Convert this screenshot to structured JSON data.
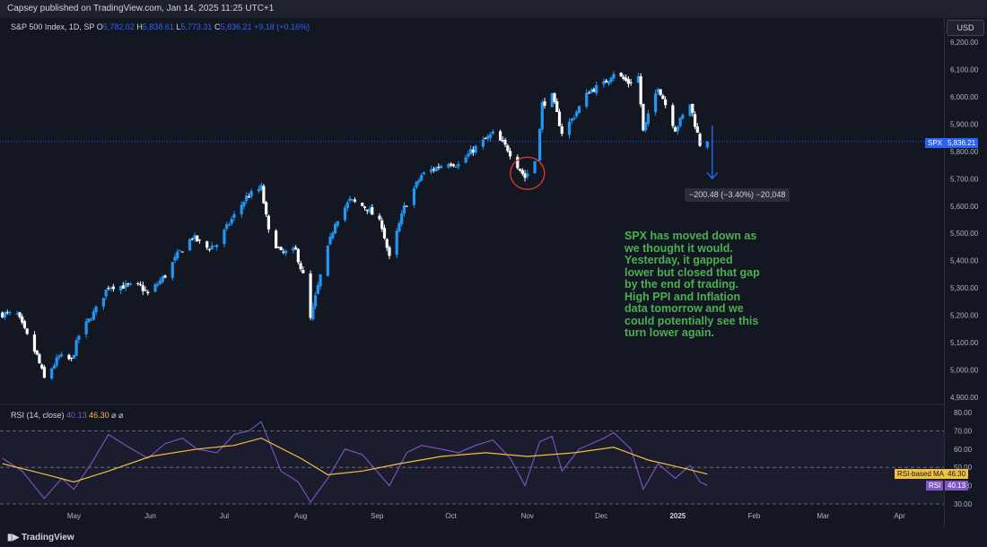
{
  "header": {
    "published": "Capsey published on TradingView.com, Jan 14, 2025 11:25 UTC+1"
  },
  "currency_button": "USD",
  "legend": {
    "symbol": "S&P 500 Index, 1D, SP",
    "o_label": "O",
    "o_value": "5,782.02",
    "h_label": "H",
    "h_value": "5,838.61",
    "l_label": "L",
    "l_value": "5,773.31",
    "c_label": "C",
    "c_value": "5,836.21",
    "change": "+9.18 (+0.16%)"
  },
  "price_tag": {
    "symbol": "SPX",
    "value": "5,836.21"
  },
  "measure_label": "−200.48 (−3.40%) −20,048",
  "annotation": "SPX has moved down as\nwe thought it would.\nYesterday, it gapped\nlower but closed that gap\nby the end of trading.\nHigh PPI and Inflation\ndata tomorrow and we\ncould potentially see this\nturn lower again.",
  "rsi_legend": {
    "label": "RSI (14, close)",
    "rsi_value": "40.13",
    "ma_value": "46.30",
    "icons": "⌀  ⌀"
  },
  "rsi_tags": {
    "ma_label": "RSI-based MA",
    "ma_value": "46.30",
    "rsi_label": "RSI",
    "rsi_value": "40.13"
  },
  "footer": {
    "brand": "TradingView"
  },
  "colors": {
    "up": "#2196f3",
    "down": "#ffffff",
    "rsi": "#7e57c2",
    "rsi_ma": "#f0c040",
    "annotation": "#4caf50",
    "arrow": "#2962ff",
    "circle": "#e53935"
  },
  "chart_data": [
    {
      "type": "candlestick",
      "title": "S&P 500 Index, 1D, SP",
      "ylim": [
        4900,
        6200
      ],
      "y_ticks": [
        "6,200.00",
        "6,100.00",
        "6,000.00",
        "5,900.00",
        "5,800.00",
        "5,700.00",
        "5,600.00",
        "5,500.00",
        "5,400.00",
        "5,300.00",
        "5,200.00",
        "5,100.00",
        "5,000.00",
        "4,900.00"
      ],
      "x_ticks": [
        "May",
        "Jun",
        "Jul",
        "Aug",
        "Sep",
        "Oct",
        "Nov",
        "Dec",
        "2025",
        "Feb",
        "Mar",
        "Apr"
      ],
      "x_tick_dates": [
        "2024-05-01",
        "2024-06-01",
        "2024-07-01",
        "2024-08-01",
        "2024-09-01",
        "2024-10-01",
        "2024-11-01",
        "2024-12-01",
        "2025-01-01",
        "2025-02-01",
        "2025-03-01",
        "2025-04-01"
      ],
      "x_range": [
        "2024-04-01",
        "2025-04-19"
      ],
      "close_path": [
        [
          "2024-04-02",
          5205
        ],
        [
          "2024-04-08",
          5202
        ],
        [
          "2024-04-12",
          5123
        ],
        [
          "2024-04-16",
          5051
        ],
        [
          "2024-04-19",
          4967
        ],
        [
          "2024-04-25",
          5048
        ],
        [
          "2024-04-30",
          5035
        ],
        [
          "2024-05-03",
          5127
        ],
        [
          "2024-05-10",
          5222
        ],
        [
          "2024-05-15",
          5308
        ],
        [
          "2024-05-22",
          5307
        ],
        [
          "2024-05-28",
          5306
        ],
        [
          "2024-05-31",
          5277
        ],
        [
          "2024-06-07",
          5346
        ],
        [
          "2024-06-12",
          5421
        ],
        [
          "2024-06-18",
          5487
        ],
        [
          "2024-06-24",
          5447
        ],
        [
          "2024-06-28",
          5460
        ],
        [
          "2024-07-03",
          5537
        ],
        [
          "2024-07-10",
          5633
        ],
        [
          "2024-07-16",
          5667
        ],
        [
          "2024-07-19",
          5505
        ],
        [
          "2024-07-24",
          5427
        ],
        [
          "2024-07-30",
          5436
        ],
        [
          "2024-08-02",
          5346
        ],
        [
          "2024-08-05",
          5186
        ],
        [
          "2024-08-09",
          5344
        ],
        [
          "2024-08-15",
          5543
        ],
        [
          "2024-08-21",
          5621
        ],
        [
          "2024-08-28",
          5592
        ],
        [
          "2024-09-03",
          5528
        ],
        [
          "2024-09-06",
          5408
        ],
        [
          "2024-09-12",
          5595
        ],
        [
          "2024-09-19",
          5713
        ],
        [
          "2024-09-26",
          5745
        ],
        [
          "2024-09-30",
          5762
        ],
        [
          "2024-10-04",
          5751
        ],
        [
          "2024-10-11",
          5815
        ],
        [
          "2024-10-18",
          5864
        ],
        [
          "2024-10-24",
          5809
        ],
        [
          "2024-10-31",
          5705
        ],
        [
          "2024-11-05",
          5782
        ],
        [
          "2024-11-07",
          5973
        ],
        [
          "2024-11-11",
          6001
        ],
        [
          "2024-11-15",
          5870
        ],
        [
          "2024-11-19",
          5917
        ],
        [
          "2024-11-26",
          6021
        ],
        [
          "2024-12-02",
          6047
        ],
        [
          "2024-12-06",
          6090
        ],
        [
          "2024-12-12",
          6051
        ],
        [
          "2024-12-16",
          6074
        ],
        [
          "2024-12-18",
          5872
        ],
        [
          "2024-12-24",
          6040
        ],
        [
          "2024-12-31",
          5882
        ],
        [
          "2025-01-06",
          5975
        ],
        [
          "2025-01-10",
          5827
        ],
        [
          "2025-01-13",
          5836
        ]
      ],
      "last_close": 5836.21
    },
    {
      "type": "line",
      "title": "RSI (14, close)",
      "ylim": [
        30,
        80
      ],
      "y_ticks": [
        "80.00",
        "70.00",
        "60.00",
        "50.00",
        "40.00",
        "30.00"
      ],
      "bands": [
        70,
        50,
        30
      ],
      "series": [
        {
          "name": "RSI",
          "values": [
            [
              "2024-04-02",
              55
            ],
            [
              "2024-04-10",
              48
            ],
            [
              "2024-04-19",
              33
            ],
            [
              "2024-04-26",
              44
            ],
            [
              "2024-05-01",
              38
            ],
            [
              "2024-05-08",
              52
            ],
            [
              "2024-05-15",
              68
            ],
            [
              "2024-05-22",
              62
            ],
            [
              "2024-05-31",
              55
            ],
            [
              "2024-06-07",
              63
            ],
            [
              "2024-06-14",
              66
            ],
            [
              "2024-06-20",
              60
            ],
            [
              "2024-06-28",
              58
            ],
            [
              "2024-07-05",
              68
            ],
            [
              "2024-07-11",
              70
            ],
            [
              "2024-07-16",
              75
            ],
            [
              "2024-07-24",
              48
            ],
            [
              "2024-07-31",
              42
            ],
            [
              "2024-08-05",
              31
            ],
            [
              "2024-08-12",
              44
            ],
            [
              "2024-08-19",
              60
            ],
            [
              "2024-08-26",
              57
            ],
            [
              "2024-09-06",
              40
            ],
            [
              "2024-09-13",
              58
            ],
            [
              "2024-09-19",
              62
            ],
            [
              "2024-09-27",
              60
            ],
            [
              "2024-10-04",
              58
            ],
            [
              "2024-10-11",
              62
            ],
            [
              "2024-10-18",
              65
            ],
            [
              "2024-10-25",
              55
            ],
            [
              "2024-10-31",
              40
            ],
            [
              "2024-11-06",
              64
            ],
            [
              "2024-11-11",
              67
            ],
            [
              "2024-11-15",
              48
            ],
            [
              "2024-11-22",
              60
            ],
            [
              "2024-12-02",
              66
            ],
            [
              "2024-12-06",
              69
            ],
            [
              "2024-12-13",
              60
            ],
            [
              "2024-12-18",
              38
            ],
            [
              "2024-12-24",
              52
            ],
            [
              "2024-12-31",
              44
            ],
            [
              "2025-01-06",
              51
            ],
            [
              "2025-01-10",
              42
            ],
            [
              "2025-01-13",
              40.13
            ]
          ]
        },
        {
          "name": "RSI-based MA",
          "values": [
            [
              "2024-04-02",
              52
            ],
            [
              "2024-04-20",
              46
            ],
            [
              "2024-05-01",
              42
            ],
            [
              "2024-05-15",
              48
            ],
            [
              "2024-06-01",
              56
            ],
            [
              "2024-06-20",
              60
            ],
            [
              "2024-07-05",
              62
            ],
            [
              "2024-07-16",
              66
            ],
            [
              "2024-08-01",
              55
            ],
            [
              "2024-08-12",
              46
            ],
            [
              "2024-08-26",
              48
            ],
            [
              "2024-09-10",
              52
            ],
            [
              "2024-09-27",
              56
            ],
            [
              "2024-10-15",
              58
            ],
            [
              "2024-11-01",
              56
            ],
            [
              "2024-11-20",
              58
            ],
            [
              "2024-12-06",
              61
            ],
            [
              "2024-12-20",
              54
            ],
            [
              "2025-01-05",
              49
            ],
            [
              "2025-01-13",
              46.3
            ]
          ]
        }
      ]
    }
  ]
}
